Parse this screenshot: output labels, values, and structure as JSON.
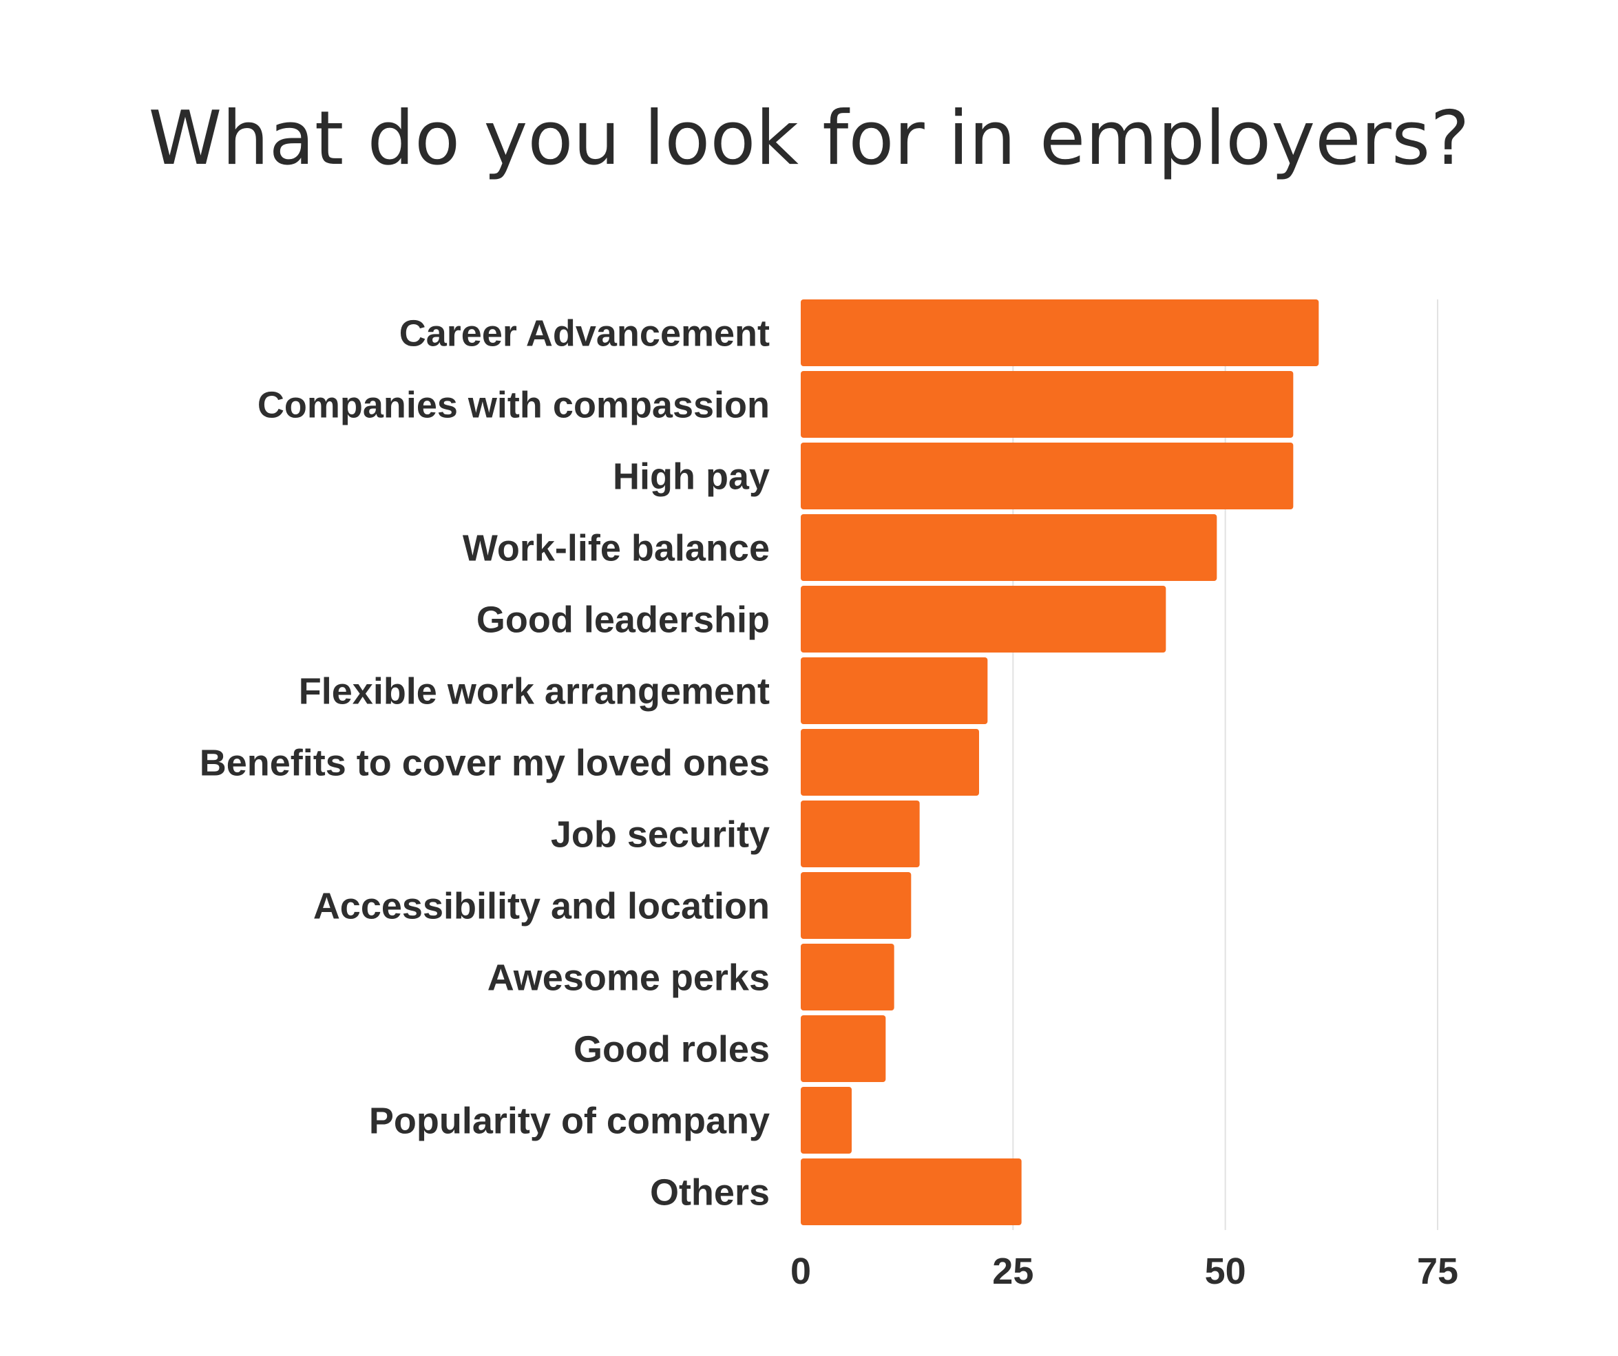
{
  "chart_data": {
    "type": "bar",
    "orientation": "horizontal",
    "title": "What do you look for in employers?",
    "categories": [
      "Career Advancement",
      "Companies with compassion",
      "High pay",
      "Work-life balance",
      "Good leadership",
      "Flexible work arrangement",
      "Benefits to cover my loved ones",
      "Job security",
      "Accessibility and location",
      "Awesome perks",
      "Good roles",
      "Popularity of company",
      "Others"
    ],
    "values": [
      61,
      58,
      58,
      49,
      43,
      22,
      21,
      14,
      13,
      11,
      10,
      6,
      26
    ],
    "xlim": [
      0,
      75
    ],
    "xticks": [
      0,
      25,
      50,
      75
    ],
    "xlabel": "",
    "ylabel": "",
    "grid": "vertical",
    "legend": "none",
    "bar_color": "#f76d1e",
    "grid_color": "#e2e2e2"
  }
}
